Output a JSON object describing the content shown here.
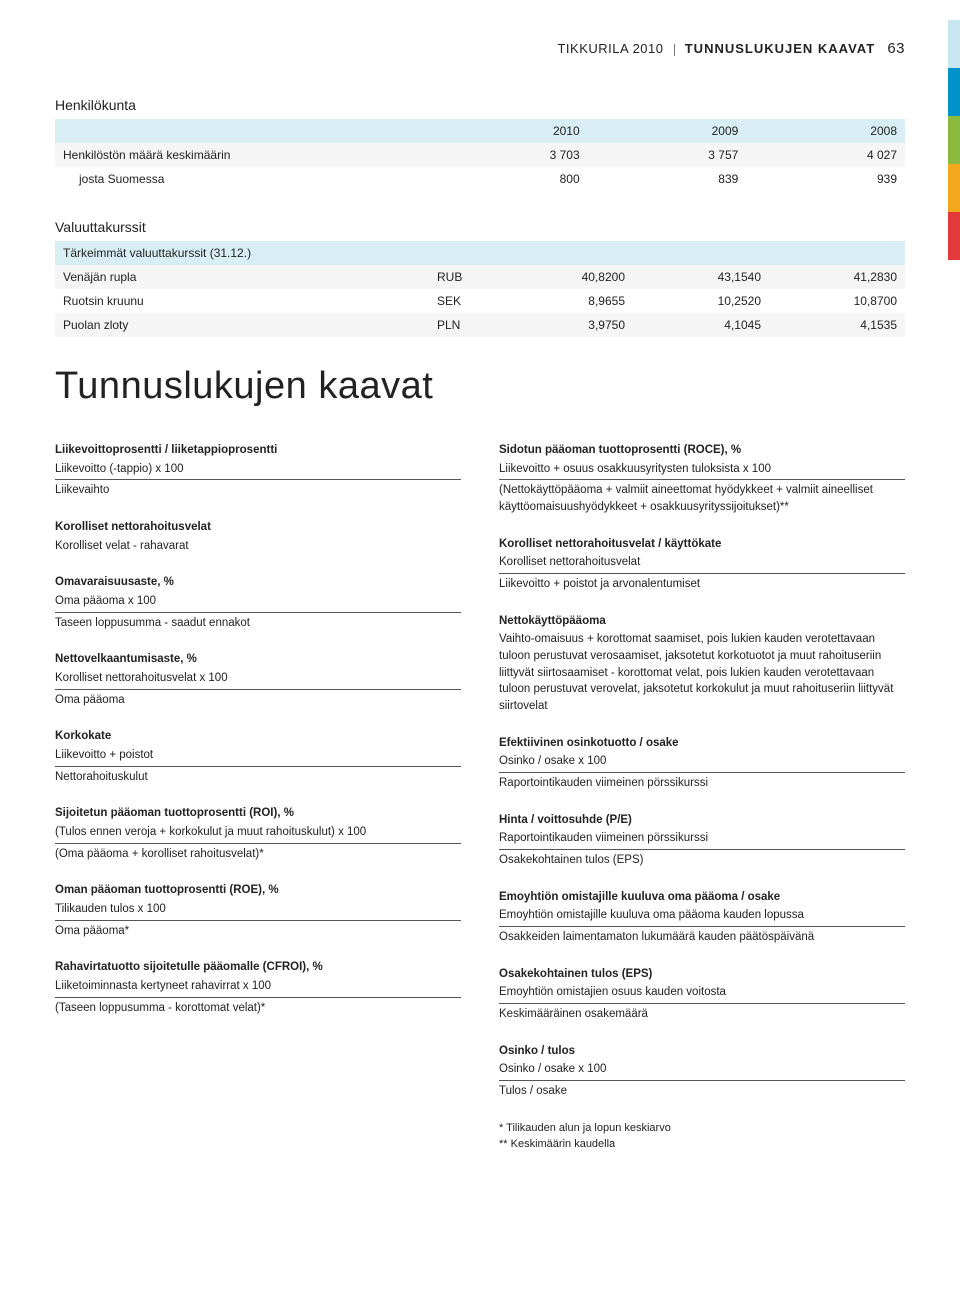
{
  "header": {
    "brand": "TIKKURILA 2010",
    "section": "TUNNUSLUKUJEN KAAVAT",
    "page_number": "63"
  },
  "side_tab_colors": [
    "#c8e6ef",
    "#0093c9",
    "#8cba3f",
    "#f4a81d",
    "#e23a3a"
  ],
  "tables": {
    "henkilokunta": {
      "title": "Henkilökunta",
      "columns": [
        "",
        "2010",
        "2009",
        "2008"
      ],
      "rows": [
        [
          "Henkilöstön määrä keskimäärin",
          "3 703",
          "3 757",
          "4 027"
        ],
        [
          "josta Suomessa",
          "800",
          "839",
          "939"
        ]
      ]
    },
    "valuuttakurssit": {
      "title": "Valuuttakurssit",
      "subtitle": "Tärkeimmät valuuttakurssit (31.12.)",
      "columns": [
        "",
        "",
        "",
        "",
        ""
      ],
      "rows": [
        [
          "Venäjän rupla",
          "RUB",
          "40,8200",
          "43,1540",
          "41,2830"
        ],
        [
          "Ruotsin kruunu",
          "SEK",
          "8,9655",
          "10,2520",
          "10,8700"
        ],
        [
          "Puolan zloty",
          "PLN",
          "3,9750",
          "4,1045",
          "4,1535"
        ]
      ]
    }
  },
  "main_heading": "Tunnuslukujen kaavat",
  "formulas_left": [
    {
      "title": "Liikevoittoprosentti / liiketappioprosentti",
      "num": "Liikevoitto (-tappio) x 100",
      "den": "Liikevaihto"
    },
    {
      "title": "Korolliset nettorahoitusvelat",
      "num": "Korolliset velat - rahavarat"
    },
    {
      "title": "Omavaraisuusaste, %",
      "num": "Oma pääoma x 100",
      "den": "Taseen loppusumma - saadut ennakot"
    },
    {
      "title": "Nettovelkaantumisaste, %",
      "num": "Korolliset nettorahoitusvelat x 100",
      "den": "Oma pääoma"
    },
    {
      "title": "Korkokate",
      "num": "Liikevoitto + poistot",
      "den": "Nettorahoituskulut"
    },
    {
      "title": "Sijoitetun pääoman tuottoprosentti (ROI), %",
      "num": "(Tulos ennen veroja + korkokulut ja muut rahoituskulut) x 100",
      "den": "(Oma pääoma + korolliset rahoitusvelat)*"
    },
    {
      "title": "Oman pääoman tuottoprosentti (ROE), %",
      "num": "Tilikauden tulos x 100",
      "den": "Oma pääoma*"
    },
    {
      "title": "Rahavirtatuotto sijoitetulle pääomalle (CFROI), %",
      "num": "Liiketoiminnasta kertyneet rahavirrat x 100",
      "den": "(Taseen loppusumma - korottomat velat)*"
    }
  ],
  "formulas_right": [
    {
      "title": "Sidotun pääoman tuottoprosentti (ROCE), %",
      "num": "Liikevoitto + osuus osakkuusyritysten tuloksista x 100",
      "den": "(Nettokäyttöpääoma + valmiit aineettomat hyödykkeet + valmiit aineelliset käyttöomaisuushyödykkeet + osakkuusyrityssijoitukset)**"
    },
    {
      "title": "Korolliset nettorahoitusvelat / käyttökate",
      "num": "Korolliset nettorahoitusvelat",
      "den": "Liikevoitto + poistot ja arvonalentumiset"
    },
    {
      "title": "Nettokäyttöpääoma",
      "body": "Vaihto-omaisuus + korottomat saamiset, pois lukien kauden verotettavaan tuloon perustuvat verosaamiset, jaksotetut korkotuotot ja muut rahoituseriin liittyvät siirtosaamiset - korottomat velat, pois lukien kauden verotettavaan tuloon perustuvat verovelat, jaksotetut korkokulut ja muut rahoituseriin liittyvät siirtovelat"
    },
    {
      "title": "Efektiivinen osinkotuotto / osake",
      "num": "Osinko / osake x 100",
      "den": "Raportointikauden viimeinen pörssikurssi"
    },
    {
      "title": "Hinta / voittosuhde (P/E)",
      "num": "Raportointikauden viimeinen pörssikurssi",
      "den": "Osakekohtainen tulos (EPS)"
    },
    {
      "title": "Emoyhtiön omistajille kuuluva oma pääoma / osake",
      "num": "Emoyhtiön omistajille kuuluva oma pääoma kauden lopussa",
      "den": "Osakkeiden laimentamaton lukumäärä kauden päätöspäivänä"
    },
    {
      "title": "Osakekohtainen tulos (EPS)",
      "num": "Emoyhtiön omistajien osuus kauden voitosta",
      "den": "Keskimääräinen osakemäärä"
    },
    {
      "title": "Osinko / tulos",
      "num": "Osinko / osake x 100",
      "den": "Tulos / osake"
    }
  ],
  "footnotes": {
    "f1": "* Tilikauden alun ja lopun keskiarvo",
    "f2": "** Keskimäärin kaudella"
  }
}
